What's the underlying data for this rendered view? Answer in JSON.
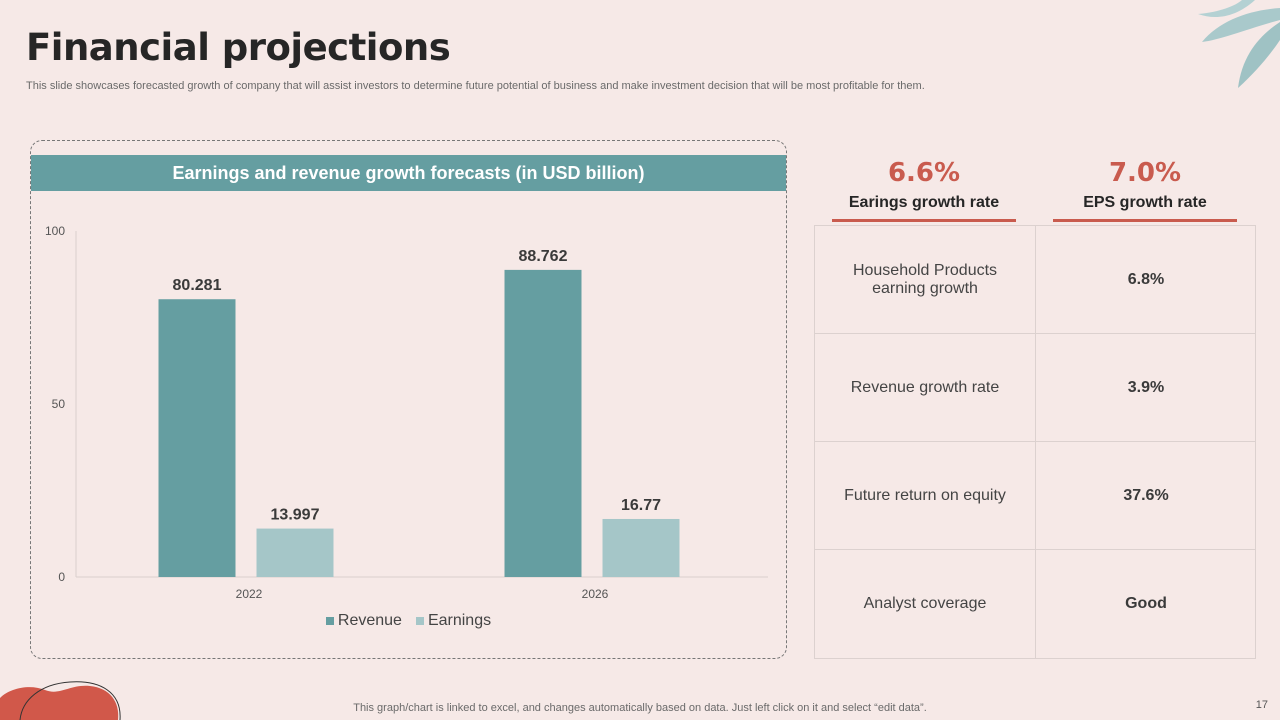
{
  "page": {
    "title": "Financial projections",
    "subtitle": "This slide showcases forecasted growth of company that will assist investors to determine future potential of business and make investment decision that will be most profitable for them.",
    "footer_note": "This graph/chart is linked to excel, and changes automatically based on data. Just left click on it and select “edit data”.",
    "page_number": "17"
  },
  "colors": {
    "accent": "#c95b4e",
    "teal": "#659ea1",
    "light_teal": "#a5c6c8",
    "background": "#f6e9e7"
  },
  "chart_data": {
    "type": "bar",
    "title": "Earnings and revenue growth forecasts (in USD billion)",
    "categories": [
      "2022",
      "2026"
    ],
    "series": [
      {
        "name": "Revenue",
        "values": [
          80.281,
          88.762
        ],
        "labels": [
          "80.281",
          "88.762"
        ],
        "color": "#659ea1"
      },
      {
        "name": "Earnings",
        "values": [
          13.997,
          16.77
        ],
        "labels": [
          "13.997",
          "16.77"
        ],
        "color": "#a5c6c8"
      }
    ],
    "yticks": [
      "0",
      "50",
      "100"
    ],
    "ylim": [
      0,
      100
    ],
    "legend_position": "bottom",
    "grid": false
  },
  "kpis": [
    {
      "value": "6.6%",
      "label": "Earings growth rate"
    },
    {
      "value": "7.0%",
      "label": "EPS growth rate"
    }
  ],
  "metrics": [
    {
      "name": "Household Products earning growth",
      "value": "6.8%"
    },
    {
      "name": "Revenue growth rate",
      "value": "3.9%"
    },
    {
      "name": "Future return on equity",
      "value": "37.6%"
    },
    {
      "name": "Analyst coverage",
      "value": "Good"
    }
  ]
}
